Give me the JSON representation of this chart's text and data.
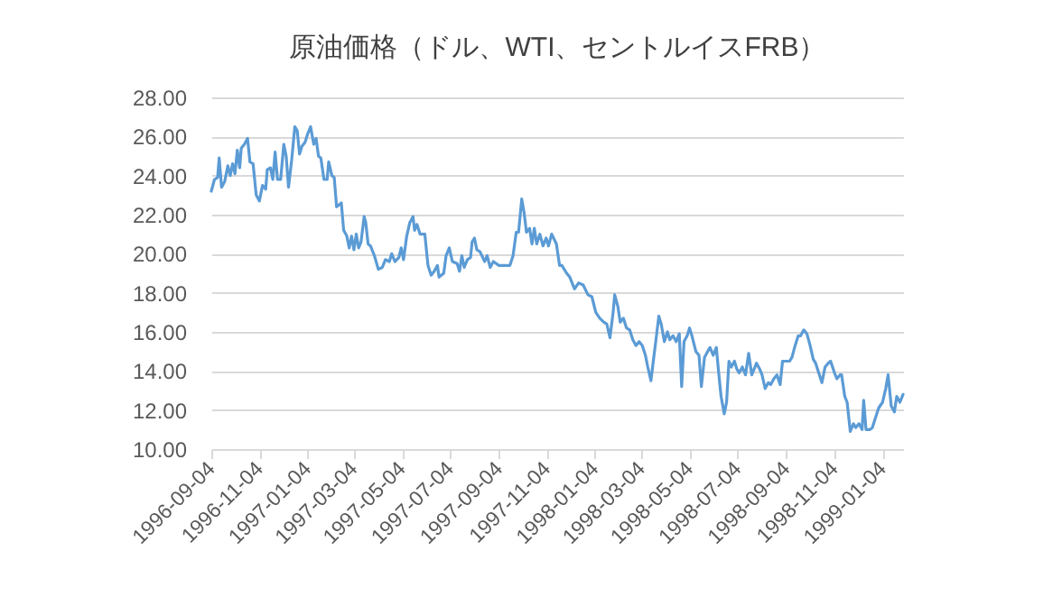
{
  "chart_data": {
    "type": "line",
    "title": "原油価格（ドル、WTI、セントルイスFRB）",
    "x": [
      "1996-09-04",
      "1996-09-08",
      "1996-09-12",
      "1996-09-14",
      "1996-09-17",
      "1996-09-21",
      "1996-09-25",
      "1996-09-28",
      "1996-10-01",
      "1996-10-04",
      "1996-10-07",
      "1996-10-10",
      "1996-10-12",
      "1996-10-16",
      "1996-10-20",
      "1996-10-23",
      "1996-10-27",
      "1996-10-31",
      "1996-11-04",
      "1996-11-08",
      "1996-11-12",
      "1996-11-14",
      "1996-11-18",
      "1996-11-21",
      "1996-11-24",
      "1996-11-27",
      "1996-12-01",
      "1996-12-05",
      "1996-12-08",
      "1996-12-11",
      "1996-12-15",
      "1996-12-19",
      "1996-12-22",
      "1996-12-25",
      "1996-12-28",
      "1997-01-01",
      "1997-01-04",
      "1997-01-08",
      "1997-01-12",
      "1997-01-15",
      "1997-01-18",
      "1997-01-21",
      "1997-01-25",
      "1997-01-29",
      "1997-01-31",
      "1997-02-04",
      "1997-02-07",
      "1997-02-10",
      "1997-02-13",
      "1997-02-16",
      "1997-02-19",
      "1997-02-23",
      "1997-02-26",
      "1997-03-01",
      "1997-03-04",
      "1997-03-07",
      "1997-03-10",
      "1997-03-13",
      "1997-03-17",
      "1997-03-19",
      "1997-03-22",
      "1997-03-25",
      "1997-03-30",
      "1997-04-04",
      "1997-04-09",
      "1997-04-13",
      "1997-04-18",
      "1997-04-21",
      "1997-04-25",
      "1997-04-30",
      "1997-05-03",
      "1997-05-06",
      "1997-05-10",
      "1997-05-14",
      "1997-05-18",
      "1997-05-20",
      "1997-05-23",
      "1997-05-27",
      "1997-06-02",
      "1997-06-06",
      "1997-06-10",
      "1997-06-14",
      "1997-06-18",
      "1997-06-20",
      "1997-06-26",
      "1997-06-29",
      "1997-07-03",
      "1997-07-07",
      "1997-07-13",
      "1997-07-16",
      "1997-07-19",
      "1997-07-22",
      "1997-07-26",
      "1997-07-30",
      "1997-08-01",
      "1997-08-04",
      "1997-08-07",
      "1997-08-11",
      "1997-08-17",
      "1997-08-20",
      "1997-08-24",
      "1997-08-28",
      "1997-09-04",
      "1997-09-12",
      "1997-09-18",
      "1997-09-22",
      "1997-09-26",
      "1997-09-29",
      "1997-10-03",
      "1997-10-06",
      "1997-10-09",
      "1997-10-13",
      "1997-10-16",
      "1997-10-19",
      "1997-10-22",
      "1997-10-26",
      "1997-10-30",
      "1997-11-03",
      "1997-11-06",
      "1997-11-10",
      "1997-11-16",
      "1997-11-20",
      "1997-11-23",
      "1997-11-29",
      "1997-12-03",
      "1997-12-09",
      "1997-12-14",
      "1997-12-20",
      "1997-12-26",
      "1997-12-31",
      "1998-01-05",
      "1998-01-10",
      "1998-01-15",
      "1998-01-19",
      "1998-01-23",
      "1998-01-27",
      "1998-01-29",
      "1998-02-02",
      "1998-02-05",
      "1998-02-09",
      "1998-02-13",
      "1998-02-17",
      "1998-02-21",
      "1998-02-25",
      "1998-03-01",
      "1998-03-05",
      "1998-03-09",
      "1998-03-12",
      "1998-03-16",
      "1998-03-19",
      "1998-03-23",
      "1998-03-26",
      "1998-03-29",
      "1998-04-02",
      "1998-04-06",
      "1998-04-09",
      "1998-04-13",
      "1998-04-17",
      "1998-04-21",
      "1998-04-24",
      "1998-04-27",
      "1998-05-01",
      "1998-05-04",
      "1998-05-07",
      "1998-05-12",
      "1998-05-16",
      "1998-05-19",
      "1998-05-23",
      "1998-05-27",
      "1998-05-30",
      "1998-06-03",
      "1998-06-07",
      "1998-06-10",
      "1998-06-13",
      "1998-06-17",
      "1998-06-20",
      "1998-06-23",
      "1998-06-26",
      "1998-06-30",
      "1998-07-03",
      "1998-07-06",
      "1998-07-10",
      "1998-07-14",
      "1998-07-18",
      "1998-07-22",
      "1998-07-26",
      "1998-07-28",
      "1998-08-01",
      "1998-08-04",
      "1998-08-08",
      "1998-08-12",
      "1998-08-15",
      "1998-08-19",
      "1998-08-23",
      "1998-08-27",
      "1998-08-30",
      "1998-09-04",
      "1998-09-08",
      "1998-09-11",
      "1998-09-15",
      "1998-09-19",
      "1998-09-22",
      "1998-09-26",
      "1998-09-30",
      "1998-10-04",
      "1998-10-08",
      "1998-10-11",
      "1998-10-15",
      "1998-10-19",
      "1998-10-23",
      "1998-10-27",
      "1998-10-30",
      "1998-11-04",
      "1998-11-07",
      "1998-11-11",
      "1998-11-13",
      "1998-11-17",
      "1998-11-20",
      "1998-11-24",
      "1998-11-28",
      "1998-12-01",
      "1998-12-05",
      "1998-12-09",
      "1998-12-11",
      "1998-12-14",
      "1998-12-19",
      "1998-12-22",
      "1998-12-26",
      "1998-12-30",
      "1999-01-04",
      "1999-01-08",
      "1999-01-11",
      "1999-01-15",
      "1999-01-19",
      "1999-01-22",
      "1999-01-26",
      "1999-01-30"
    ],
    "series": [
      {
        "color": "#5b9bd5",
        "values": [
          23.2,
          23.8,
          23.9,
          24.9,
          23.4,
          23.7,
          24.5,
          24.0,
          24.6,
          24.1,
          25.3,
          24.4,
          25.4,
          25.6,
          25.9,
          24.7,
          24.6,
          23.0,
          22.7,
          23.5,
          23.3,
          24.3,
          24.4,
          23.8,
          25.2,
          23.8,
          23.8,
          25.6,
          25.0,
          23.4,
          24.8,
          26.5,
          26.3,
          25.1,
          25.5,
          25.7,
          26.1,
          26.5,
          25.6,
          25.9,
          25.0,
          24.9,
          23.8,
          23.8,
          24.7,
          24.0,
          23.9,
          22.4,
          22.5,
          22.6,
          21.2,
          20.9,
          20.3,
          20.9,
          20.2,
          21.0,
          20.3,
          20.6,
          21.9,
          21.6,
          20.5,
          20.4,
          19.9,
          19.2,
          19.3,
          19.7,
          19.6,
          20.0,
          19.6,
          19.8,
          20.3,
          19.7,
          20.9,
          21.6,
          21.9,
          21.2,
          21.5,
          21.0,
          21.0,
          19.4,
          18.9,
          19.1,
          19.4,
          18.8,
          19.0,
          19.9,
          20.3,
          19.6,
          19.5,
          19.1,
          19.9,
          19.3,
          19.7,
          19.8,
          20.6,
          20.8,
          20.2,
          20.1,
          19.6,
          19.9,
          19.3,
          19.6,
          19.4,
          19.4,
          19.4,
          19.9,
          21.1,
          21.1,
          22.8,
          22.1,
          21.1,
          21.3,
          20.5,
          21.3,
          20.5,
          21.0,
          20.4,
          20.8,
          20.4,
          21.0,
          20.5,
          19.4,
          19.4,
          19.0,
          18.8,
          18.2,
          18.5,
          18.4,
          17.9,
          17.8,
          17.0,
          16.7,
          16.5,
          16.4,
          15.7,
          17.0,
          17.9,
          17.3,
          16.5,
          16.7,
          16.2,
          16.1,
          15.6,
          15.3,
          15.5,
          15.3,
          14.8,
          14.2,
          13.5,
          14.5,
          15.8,
          16.8,
          16.4,
          15.5,
          16.0,
          15.6,
          15.8,
          15.5,
          15.9,
          13.2,
          15.5,
          15.8,
          16.2,
          15.8,
          15.0,
          14.8,
          13.2,
          14.7,
          15.0,
          15.2,
          14.8,
          15.2,
          13.9,
          12.7,
          11.8,
          12.4,
          14.5,
          14.2,
          14.5,
          14.1,
          13.9,
          14.2,
          13.8,
          14.9,
          13.8,
          14.2,
          14.4,
          14.1,
          13.8,
          13.1,
          13.4,
          13.3,
          13.6,
          13.8,
          13.3,
          14.5,
          14.5,
          14.5,
          14.7,
          15.3,
          15.8,
          15.8,
          16.1,
          15.9,
          15.3,
          14.6,
          14.4,
          13.9,
          13.4,
          14.2,
          14.4,
          14.5,
          13.9,
          13.6,
          13.8,
          13.8,
          12.7,
          12.4,
          10.9,
          11.3,
          11.1,
          11.3,
          11.0,
          12.5,
          11.0,
          11.0,
          11.1,
          11.6,
          12.1,
          12.4,
          13.1,
          13.8,
          12.2,
          11.9,
          12.7,
          12.4,
          12.8
        ]
      }
    ],
    "xlim": [
      "1996-09-04",
      "1999-01-30"
    ],
    "xticks": [
      "1996-09-04",
      "1996-11-04",
      "1997-01-04",
      "1997-03-04",
      "1997-05-04",
      "1997-07-04",
      "1997-09-04",
      "1997-11-04",
      "1998-01-04",
      "1998-03-04",
      "1998-05-04",
      "1998-07-04",
      "1998-09-04",
      "1998-11-04",
      "1999-01-04"
    ],
    "ylim": [
      10,
      28
    ],
    "yticks": [
      {
        "value": 10,
        "label": "10.00"
      },
      {
        "value": 12,
        "label": "12.00"
      },
      {
        "value": 14,
        "label": "14.00"
      },
      {
        "value": 16,
        "label": "16.00"
      },
      {
        "value": 18,
        "label": "18.00"
      },
      {
        "value": 20,
        "label": "20.00"
      },
      {
        "value": 22,
        "label": "22.00"
      },
      {
        "value": 24,
        "label": "24.00"
      },
      {
        "value": 26,
        "label": "26.00"
      },
      {
        "value": 28,
        "label": "28.00"
      }
    ],
    "grid": "y"
  }
}
